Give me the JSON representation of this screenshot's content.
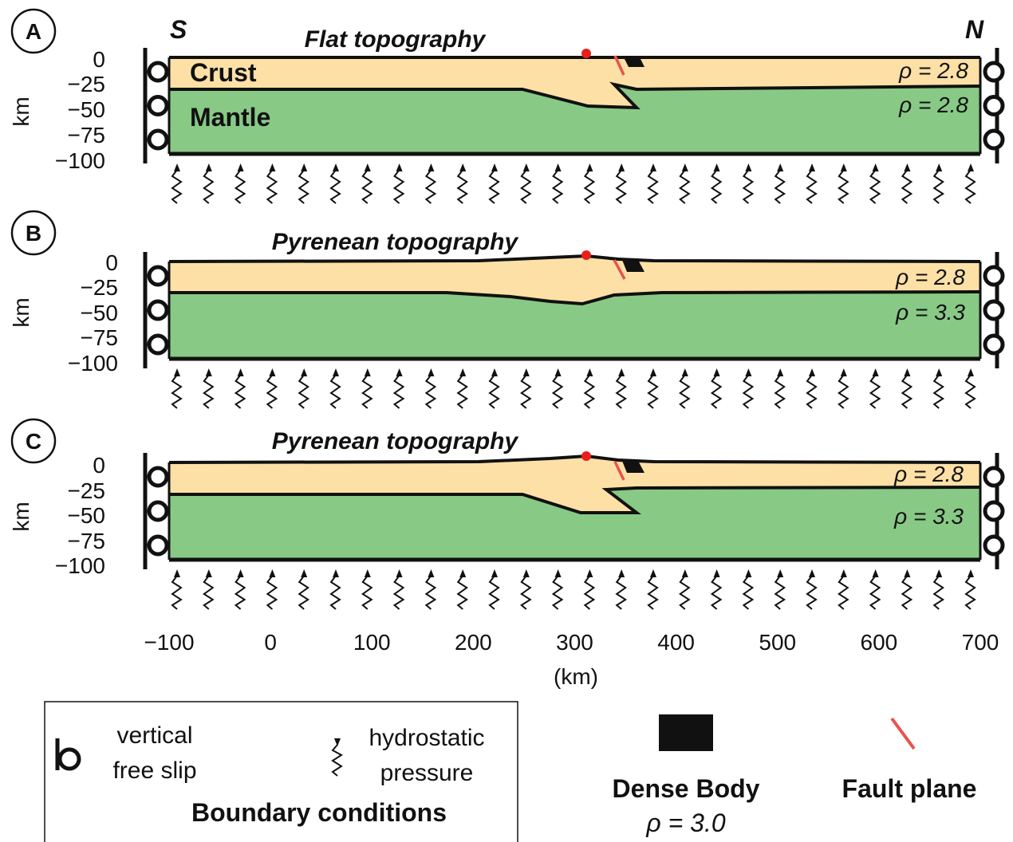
{
  "direction_left": "S",
  "direction_right": "N",
  "depth_unit": "km",
  "x_unit": "(km)",
  "depth_ticks": [
    "0",
    "−25",
    "−50",
    "−75",
    "−100"
  ],
  "x_ticks": [
    -100,
    0,
    100,
    200,
    300,
    400,
    500,
    600,
    700
  ],
  "x_tick_labels": [
    "−100",
    "0",
    "100",
    "200",
    "300",
    "400",
    "500",
    "600",
    "700"
  ],
  "panels": [
    {
      "letter": "A",
      "title": "Flat topography",
      "layer_labels": {
        "crust": "Crust",
        "mantle": "Mantle"
      },
      "density_crust": "ρ = 2.8",
      "density_mantle": "ρ = 2.8",
      "crust_color": "#fde0a6",
      "mantle_color": "#88c986"
    },
    {
      "letter": "B",
      "title": "Pyrenean topography",
      "density_crust": "ρ = 2.8",
      "density_mantle": "ρ = 3.3",
      "crust_color": "#fde0a6",
      "mantle_color": "#88c986"
    },
    {
      "letter": "C",
      "title": "Pyrenean topography",
      "density_crust": "ρ = 2.8",
      "density_mantle": "ρ = 3.3",
      "crust_color": "#fde0a6",
      "mantle_color": "#88c986"
    }
  ],
  "legend": {
    "free_slip_label_1": "vertical",
    "free_slip_label_2": "free slip",
    "hydrostatic_label_1": "hydrostatic",
    "hydrostatic_label_2": "pressure",
    "boundary_title": "Boundary conditions",
    "dense_body_label": "Dense Body",
    "dense_body_density": "ρ = 3.0",
    "dense_body_color": "#111111",
    "fault_label": "Fault plane",
    "fault_color": "#e8534f"
  },
  "marker_color": "#e8201b"
}
